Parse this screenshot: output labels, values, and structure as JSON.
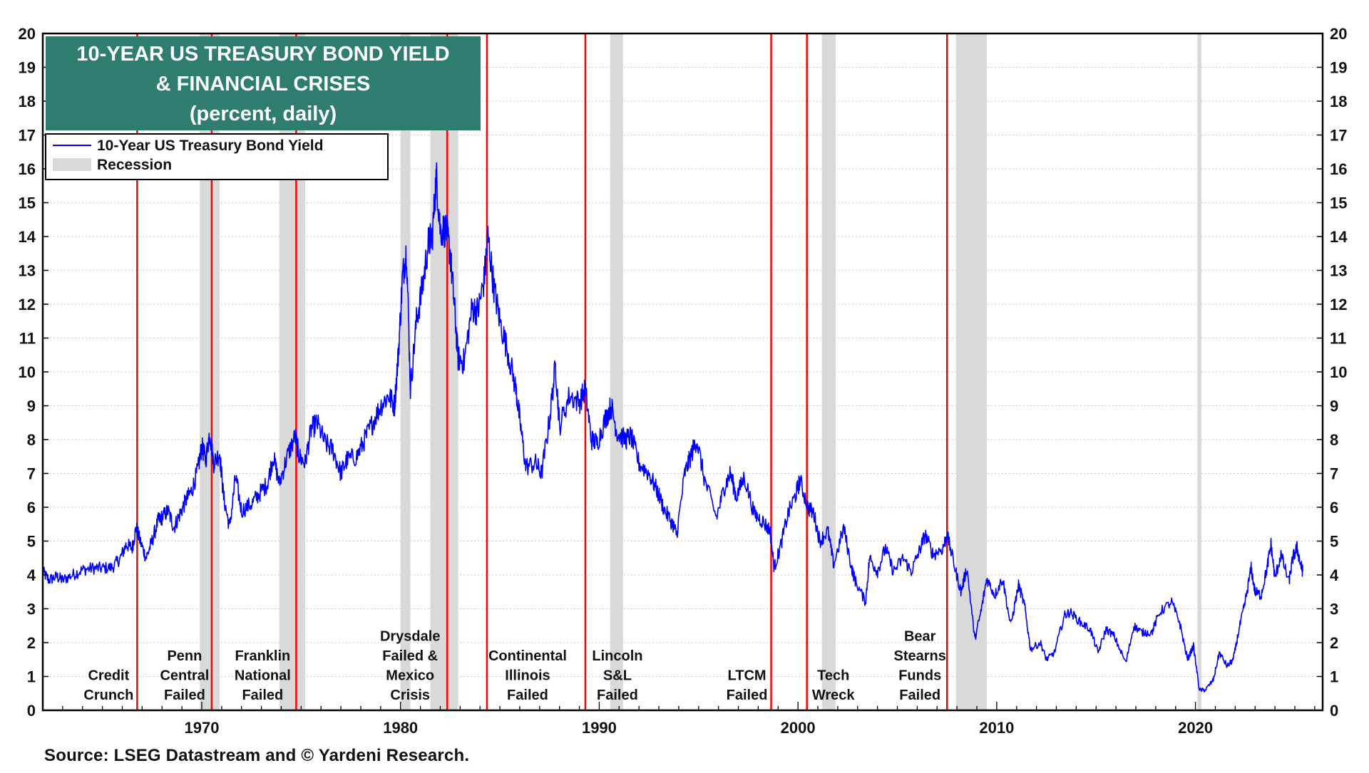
{
  "source": "Source: LSEG Datastream and © Yardeni Research.",
  "colors": {
    "title_bg": "#2E7D6F",
    "title_text": "#FFFFFF",
    "series": "#0000FF",
    "recession": "#D9D9D9",
    "crisis_line": "#FF0000",
    "frame": "#000000",
    "grid": "#C8C8C8"
  },
  "chart_data": {
    "type": "line",
    "title": [
      "10-YEAR US TREASURY BOND YIELD",
      "& FINANCIAL CRISES",
      "(percent, daily)"
    ],
    "xlim": [
      1962.0,
      2026.4
    ],
    "ylim": [
      0,
      20
    ],
    "y_ticks": [
      0,
      1,
      2,
      3,
      4,
      5,
      6,
      7,
      8,
      9,
      10,
      11,
      12,
      13,
      14,
      15,
      16,
      17,
      18,
      19,
      20
    ],
    "x_ticks": [
      1970,
      1980,
      1990,
      2000,
      2010,
      2020
    ],
    "grid": "horizontal dotted",
    "legend": {
      "placement": "top-left",
      "entries": [
        {
          "label": "10-Year US Treasury Bond Yield",
          "kind": "line"
        },
        {
          "label": "Recession",
          "kind": "band"
        }
      ]
    },
    "series": [
      {
        "name": "10-Year US Treasury Bond Yield",
        "points": [
          [
            1962.0,
            4.1
          ],
          [
            1962.3,
            3.85
          ],
          [
            1962.7,
            3.95
          ],
          [
            1963.0,
            3.85
          ],
          [
            1963.5,
            4.0
          ],
          [
            1964.0,
            4.15
          ],
          [
            1964.5,
            4.2
          ],
          [
            1965.0,
            4.2
          ],
          [
            1965.5,
            4.22
          ],
          [
            1965.9,
            4.5
          ],
          [
            1966.2,
            4.9
          ],
          [
            1966.5,
            4.8
          ],
          [
            1966.7,
            5.4
          ],
          [
            1966.9,
            5.0
          ],
          [
            1967.2,
            4.5
          ],
          [
            1967.5,
            5.0
          ],
          [
            1967.8,
            5.6
          ],
          [
            1968.0,
            5.7
          ],
          [
            1968.3,
            5.9
          ],
          [
            1968.6,
            5.4
          ],
          [
            1968.9,
            5.8
          ],
          [
            1969.2,
            6.2
          ],
          [
            1969.5,
            6.5
          ],
          [
            1969.8,
            7.1
          ],
          [
            1970.0,
            7.8
          ],
          [
            1970.2,
            7.4
          ],
          [
            1970.4,
            8.2
          ],
          [
            1970.6,
            7.3
          ],
          [
            1970.9,
            7.6
          ],
          [
            1971.1,
            6.3
          ],
          [
            1971.4,
            5.4
          ],
          [
            1971.7,
            6.9
          ],
          [
            1972.0,
            5.9
          ],
          [
            1972.5,
            6.1
          ],
          [
            1972.9,
            6.4
          ],
          [
            1973.3,
            6.7
          ],
          [
            1973.6,
            7.5
          ],
          [
            1973.9,
            6.7
          ],
          [
            1974.3,
            7.5
          ],
          [
            1974.7,
            8.1
          ],
          [
            1974.9,
            7.5
          ],
          [
            1975.2,
            7.3
          ],
          [
            1975.5,
            8.3
          ],
          [
            1975.8,
            8.5
          ],
          [
            1976.2,
            7.9
          ],
          [
            1976.6,
            7.7
          ],
          [
            1977.0,
            7.0
          ],
          [
            1977.3,
            7.4
          ],
          [
            1977.8,
            7.5
          ],
          [
            1978.2,
            8.0
          ],
          [
            1978.6,
            8.5
          ],
          [
            1979.0,
            9.0
          ],
          [
            1979.4,
            9.3
          ],
          [
            1979.7,
            9.0
          ],
          [
            1979.9,
            10.6
          ],
          [
            1980.1,
            12.8
          ],
          [
            1980.3,
            13.6
          ],
          [
            1980.5,
            9.5
          ],
          [
            1980.8,
            11.5
          ],
          [
            1981.1,
            12.5
          ],
          [
            1981.4,
            13.8
          ],
          [
            1981.6,
            14.0
          ],
          [
            1981.8,
            15.8
          ],
          [
            1982.0,
            14.2
          ],
          [
            1982.3,
            14.2
          ],
          [
            1982.5,
            13.5
          ],
          [
            1982.7,
            12.0
          ],
          [
            1982.9,
            10.4
          ],
          [
            1983.2,
            10.3
          ],
          [
            1983.6,
            11.9
          ],
          [
            1983.9,
            11.8
          ],
          [
            1984.2,
            12.7
          ],
          [
            1984.4,
            14.0
          ],
          [
            1984.7,
            12.5
          ],
          [
            1985.0,
            11.5
          ],
          [
            1985.4,
            10.6
          ],
          [
            1985.8,
            9.5
          ],
          [
            1986.0,
            8.6
          ],
          [
            1986.3,
            7.2
          ],
          [
            1986.8,
            7.3
          ],
          [
            1987.1,
            7.0
          ],
          [
            1987.5,
            8.6
          ],
          [
            1987.8,
            10.2
          ],
          [
            1988.0,
            8.4
          ],
          [
            1988.5,
            9.3
          ],
          [
            1989.0,
            9.1
          ],
          [
            1989.3,
            9.5
          ],
          [
            1989.6,
            8.0
          ],
          [
            1989.9,
            7.9
          ],
          [
            1990.3,
            8.6
          ],
          [
            1990.6,
            9.0
          ],
          [
            1990.9,
            8.2
          ],
          [
            1991.3,
            8.0
          ],
          [
            1991.6,
            8.1
          ],
          [
            1992.0,
            7.3
          ],
          [
            1992.5,
            7.0
          ],
          [
            1992.9,
            6.5
          ],
          [
            1993.3,
            5.9
          ],
          [
            1993.7,
            5.5
          ],
          [
            1993.9,
            5.2
          ],
          [
            1994.3,
            7.0
          ],
          [
            1994.6,
            7.5
          ],
          [
            1994.9,
            8.0
          ],
          [
            1995.3,
            6.8
          ],
          [
            1995.9,
            5.7
          ],
          [
            1996.3,
            6.6
          ],
          [
            1996.6,
            7.0
          ],
          [
            1996.9,
            6.3
          ],
          [
            1997.3,
            6.9
          ],
          [
            1997.8,
            5.8
          ],
          [
            1998.2,
            5.6
          ],
          [
            1998.6,
            5.3
          ],
          [
            1998.8,
            4.2
          ],
          [
            1999.1,
            4.8
          ],
          [
            1999.5,
            5.8
          ],
          [
            1999.9,
            6.4
          ],
          [
            2000.1,
            6.8
          ],
          [
            2000.5,
            6.0
          ],
          [
            2000.8,
            5.8
          ],
          [
            2001.1,
            5.0
          ],
          [
            2001.5,
            5.3
          ],
          [
            2001.8,
            4.3
          ],
          [
            2002.3,
            5.4
          ],
          [
            2002.7,
            4.2
          ],
          [
            2002.9,
            3.8
          ],
          [
            2003.4,
            3.2
          ],
          [
            2003.6,
            4.5
          ],
          [
            2004.0,
            4.1
          ],
          [
            2004.4,
            4.8
          ],
          [
            2004.8,
            4.1
          ],
          [
            2005.3,
            4.5
          ],
          [
            2005.7,
            4.1
          ],
          [
            2006.1,
            4.7
          ],
          [
            2006.4,
            5.2
          ],
          [
            2006.8,
            4.6
          ],
          [
            2007.3,
            4.8
          ],
          [
            2007.5,
            5.2
          ],
          [
            2007.9,
            4.2
          ],
          [
            2008.2,
            3.5
          ],
          [
            2008.5,
            4.2
          ],
          [
            2008.9,
            2.1
          ],
          [
            2009.2,
            2.9
          ],
          [
            2009.5,
            3.9
          ],
          [
            2009.9,
            3.4
          ],
          [
            2010.3,
            3.9
          ],
          [
            2010.7,
            2.5
          ],
          [
            2011.1,
            3.7
          ],
          [
            2011.4,
            3.1
          ],
          [
            2011.7,
            1.8
          ],
          [
            2012.2,
            2.0
          ],
          [
            2012.5,
            1.5
          ],
          [
            2012.9,
            1.7
          ],
          [
            2013.4,
            2.8
          ],
          [
            2013.7,
            2.9
          ],
          [
            2014.2,
            2.6
          ],
          [
            2014.7,
            2.4
          ],
          [
            2015.1,
            1.7
          ],
          [
            2015.5,
            2.4
          ],
          [
            2015.9,
            2.2
          ],
          [
            2016.5,
            1.4
          ],
          [
            2016.9,
            2.5
          ],
          [
            2017.3,
            2.3
          ],
          [
            2017.8,
            2.3
          ],
          [
            2018.2,
            2.9
          ],
          [
            2018.8,
            3.2
          ],
          [
            2019.2,
            2.6
          ],
          [
            2019.6,
            1.5
          ],
          [
            2019.9,
            1.9
          ],
          [
            2020.2,
            0.6
          ],
          [
            2020.5,
            0.6
          ],
          [
            2020.9,
            0.9
          ],
          [
            2021.2,
            1.7
          ],
          [
            2021.6,
            1.3
          ],
          [
            2021.9,
            1.5
          ],
          [
            2022.2,
            2.4
          ],
          [
            2022.5,
            3.2
          ],
          [
            2022.8,
            4.2
          ],
          [
            2023.0,
            3.5
          ],
          [
            2023.3,
            3.4
          ],
          [
            2023.6,
            4.2
          ],
          [
            2023.8,
            4.9
          ],
          [
            2024.0,
            3.9
          ],
          [
            2024.3,
            4.6
          ],
          [
            2024.7,
            3.8
          ],
          [
            2024.9,
            4.5
          ],
          [
            2025.1,
            4.8
          ],
          [
            2025.3,
            4.3
          ],
          [
            2025.4,
            4.1
          ]
        ]
      }
    ],
    "recessions": [
      [
        1969.9,
        1970.9
      ],
      [
        1973.9,
        1975.2
      ],
      [
        1980.0,
        1980.5
      ],
      [
        1981.5,
        1982.9
      ],
      [
        1990.55,
        1991.2
      ],
      [
        2001.2,
        2001.9
      ],
      [
        2007.95,
        2009.5
      ],
      [
        2020.1,
        2020.3
      ]
    ],
    "crises": [
      {
        "x": 1966.75,
        "label": [
          "Credit",
          "Crunch"
        ]
      },
      {
        "x": 1970.5,
        "label": [
          "Penn",
          "Central",
          "Failed"
        ]
      },
      {
        "x": 1974.75,
        "label": [
          "Franklin",
          "National",
          "Failed"
        ]
      },
      {
        "x": 1982.35,
        "label": [
          "Drysdale",
          "Failed &",
          "Mexico",
          "Crisis"
        ]
      },
      {
        "x": 1984.35,
        "label": [
          "Continental",
          "Illinois",
          "Failed"
        ]
      },
      {
        "x": 1989.3,
        "label": [
          "Lincoln",
          "S&L",
          "Failed"
        ]
      },
      {
        "x": 1998.65,
        "label": [
          "LTCM",
          "Failed"
        ]
      },
      {
        "x": 2000.45,
        "label": [
          "Tech",
          "Wreck"
        ]
      },
      {
        "x": 2007.5,
        "label": [
          "Bear",
          "Stearns",
          "Funds",
          "Failed"
        ]
      }
    ]
  }
}
